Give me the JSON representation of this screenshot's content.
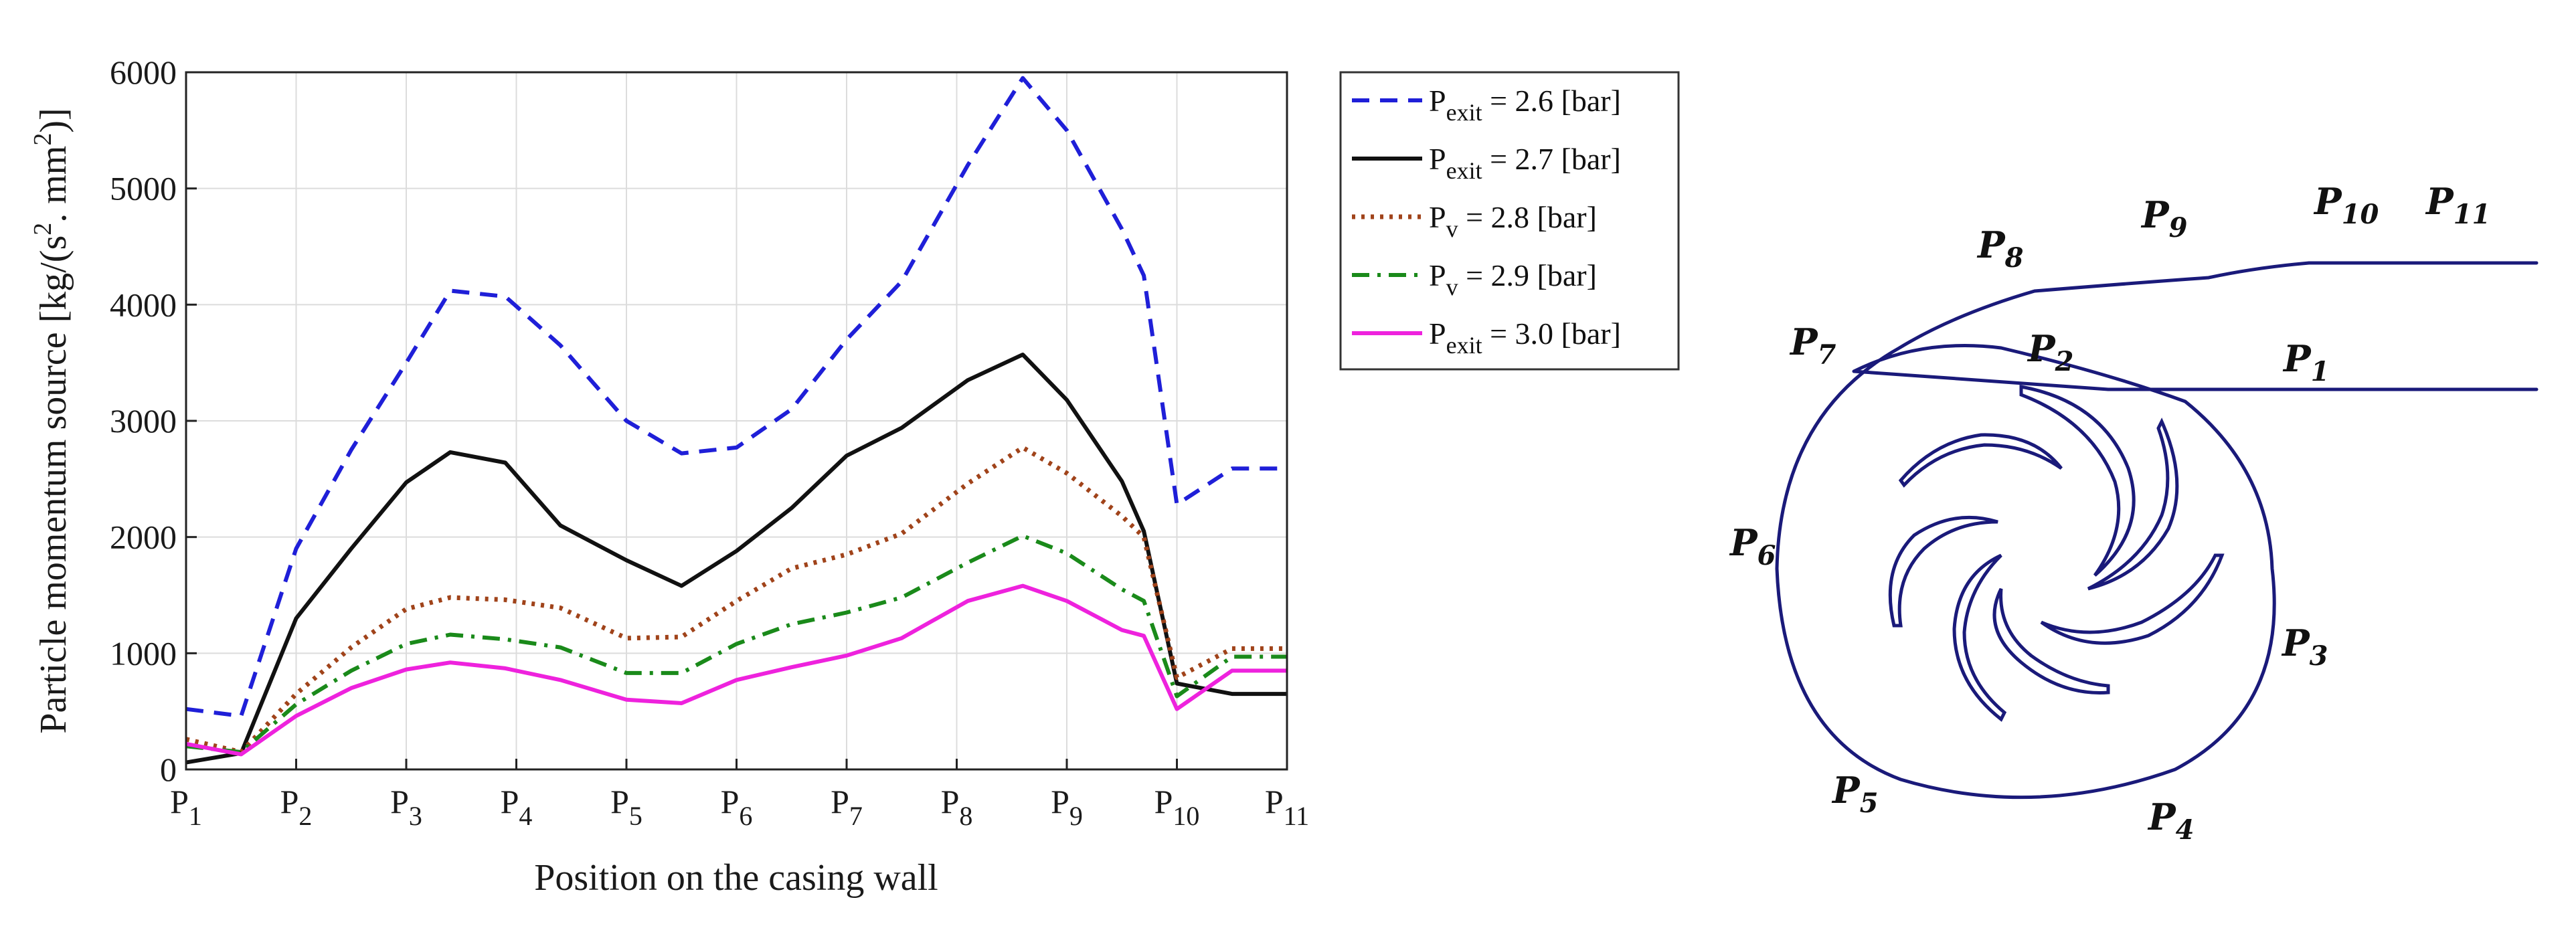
{
  "chart_data": {
    "type": "line",
    "title": "",
    "xlabel": "Position on the casing wall",
    "ylabel": "Particle momentum source [kg/(s",
    "ylabel_units": {
      "sup1": "2",
      "mid": ". mm",
      "sup2": "2",
      "end": ")]"
    },
    "ylim": [
      0,
      6000
    ],
    "yticks": [
      "0",
      "1000",
      "2000",
      "3000",
      "4000",
      "5000",
      "6000"
    ],
    "xlim": [
      1,
      11
    ],
    "xticks": [
      {
        "base": "P",
        "sub": "1"
      },
      {
        "base": "P",
        "sub": "2"
      },
      {
        "base": "P",
        "sub": "3"
      },
      {
        "base": "P",
        "sub": "4"
      },
      {
        "base": "P",
        "sub": "5"
      },
      {
        "base": "P",
        "sub": "6"
      },
      {
        "base": "P",
        "sub": "7"
      },
      {
        "base": "P",
        "sub": "8"
      },
      {
        "base": "P",
        "sub": "9"
      },
      {
        "base": "P",
        "sub": "10"
      },
      {
        "base": "P",
        "sub": "11"
      }
    ],
    "grid": true,
    "legend_position": "outside-right",
    "series": [
      {
        "base": "P",
        "sub": "exit",
        "rest": " = 2.6 [bar]",
        "color": "#1f1fd8",
        "dash": "dash",
        "x": [
          1,
          1.5,
          2,
          2.5,
          3,
          3.4,
          3.9,
          4.4,
          5,
          5.5,
          6,
          6.5,
          7,
          7.5,
          8.1,
          8.6,
          9,
          9.5,
          9.7,
          10,
          10.5,
          11
        ],
        "y": [
          520,
          460,
          1900,
          2750,
          3500,
          4120,
          4070,
          3650,
          3000,
          2720,
          2770,
          3100,
          3700,
          4200,
          5200,
          5950,
          5500,
          4650,
          4250,
          2280,
          2590,
          2590
        ]
      },
      {
        "base": "P",
        "sub": "exit",
        "rest": " = 2.7 [bar]",
        "color": "#111111",
        "dash": "solid",
        "x": [
          1,
          1.5,
          2,
          2.5,
          3,
          3.4,
          3.9,
          4.4,
          5,
          5.5,
          6,
          6.5,
          7,
          7.5,
          8.1,
          8.6,
          9,
          9.5,
          9.7,
          10,
          10.5,
          11
        ],
        "y": [
          60,
          140,
          1300,
          1900,
          2470,
          2730,
          2640,
          2100,
          1800,
          1580,
          1880,
          2250,
          2700,
          2940,
          3350,
          3570,
          3180,
          2480,
          2050,
          740,
          650,
          650
        ]
      },
      {
        "base": "P",
        "sub": "v",
        "rest": " = 2.8 [bar]",
        "color": "#a0431a",
        "dash": "dot",
        "x": [
          1,
          1.5,
          2,
          2.5,
          3,
          3.4,
          3.9,
          4.4,
          5,
          5.5,
          6,
          6.5,
          7,
          7.5,
          8.1,
          8.6,
          9,
          9.5,
          9.7,
          10,
          10.5,
          11
        ],
        "y": [
          260,
          150,
          650,
          1050,
          1380,
          1480,
          1460,
          1390,
          1130,
          1140,
          1450,
          1730,
          1850,
          2030,
          2460,
          2770,
          2550,
          2180,
          2000,
          790,
          1040,
          1040
        ]
      },
      {
        "base": "P",
        "sub": "v",
        "rest": " = 2.9 [bar]",
        "color": "#1a8a1a",
        "dash": "dashdot",
        "x": [
          1,
          1.5,
          2,
          2.5,
          3,
          3.4,
          3.9,
          4.4,
          5,
          5.5,
          6,
          6.5,
          7,
          7.5,
          8.1,
          8.6,
          9,
          9.5,
          9.7,
          10,
          10.5,
          11
        ],
        "y": [
          200,
          150,
          560,
          850,
          1080,
          1160,
          1120,
          1050,
          830,
          830,
          1080,
          1250,
          1350,
          1480,
          1780,
          2010,
          1860,
          1550,
          1450,
          630,
          970,
          970
        ]
      },
      {
        "base": "P",
        "sub": "exit",
        "rest": " = 3.0 [bar]",
        "color": "#ee22dd",
        "dash": "solid",
        "x": [
          1,
          1.5,
          2,
          2.5,
          3,
          3.4,
          3.9,
          4.4,
          5,
          5.5,
          6,
          6.5,
          7,
          7.5,
          8.1,
          8.6,
          9,
          9.5,
          9.7,
          10,
          10.5,
          11
        ],
        "y": [
          220,
          130,
          460,
          700,
          860,
          920,
          870,
          770,
          600,
          570,
          770,
          880,
          980,
          1130,
          1450,
          1580,
          1450,
          1200,
          1150,
          520,
          850,
          850
        ]
      }
    ]
  },
  "diagram": {
    "labels": [
      {
        "base": "P",
        "sub": "1"
      },
      {
        "base": "P",
        "sub": "2"
      },
      {
        "base": "P",
        "sub": "3"
      },
      {
        "base": "P",
        "sub": "4"
      },
      {
        "base": "P",
        "sub": "5"
      },
      {
        "base": "P",
        "sub": "6"
      },
      {
        "base": "P",
        "sub": "7"
      },
      {
        "base": "P",
        "sub": "8"
      },
      {
        "base": "P",
        "sub": "9"
      },
      {
        "base": "P",
        "sub": "10"
      },
      {
        "base": "P",
        "sub": "11"
      }
    ],
    "line_color": "#1a1a7a"
  }
}
